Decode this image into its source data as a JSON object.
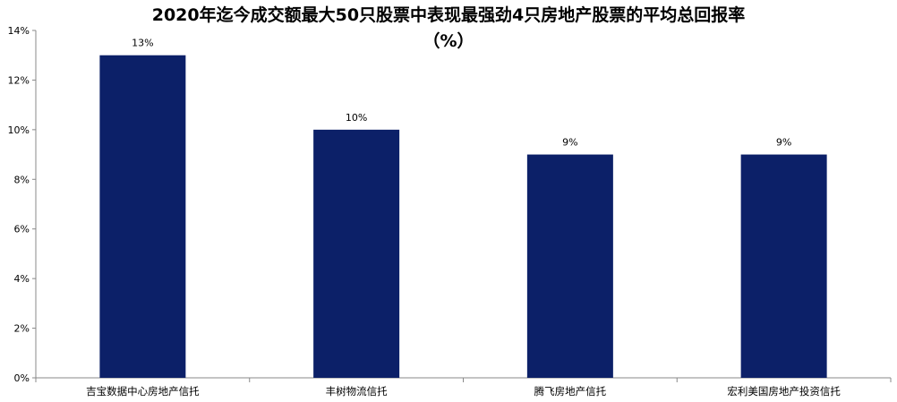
{
  "chart_data": {
    "type": "bar",
    "title": "2020年迄今成交额最大50只股票中表现最强劲4只房地产股票的平均总回报率",
    "subtitle": "（%）",
    "categories": [
      "吉宝数据中心房地产信托",
      "丰树物流信托",
      "腾飞房地产信托",
      "宏利美国房地产投资信托"
    ],
    "values": [
      13,
      10,
      9,
      9
    ],
    "data_labels": [
      "13%",
      "10%",
      "9%",
      "9%"
    ],
    "ylim": [
      0,
      14
    ],
    "yticks": [
      0,
      2,
      4,
      6,
      8,
      10,
      12,
      14
    ],
    "ytick_labels": [
      "0%",
      "2%",
      "4%",
      "6%",
      "8%",
      "10%",
      "12%",
      "14%"
    ],
    "xlabel": "",
    "ylabel": "",
    "grid": false,
    "legend": "none",
    "colors": {
      "bar": "#0c2068",
      "axis": "#888888"
    }
  }
}
